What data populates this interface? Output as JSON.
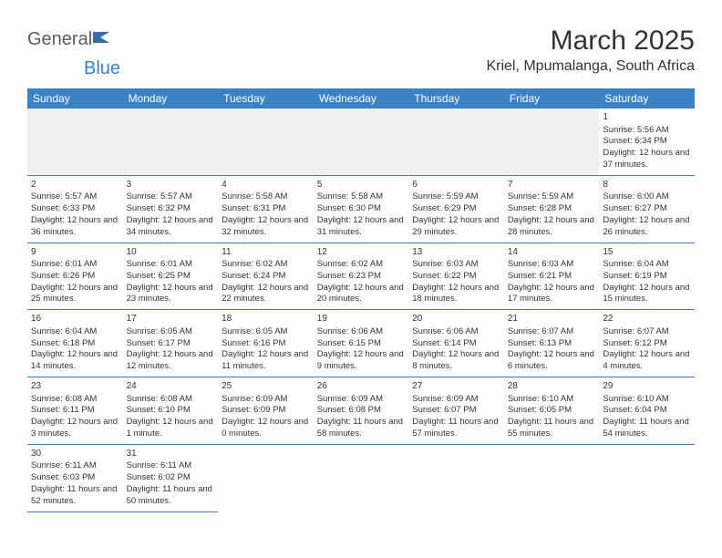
{
  "logo": {
    "text1": "General",
    "text2": "Blue",
    "shape_color": "#2f6fb0"
  },
  "title": "March 2025",
  "location": "Kriel, Mpumalanga, South Africa",
  "colors": {
    "header_bg": "#3b82c4",
    "header_text": "#ffffff",
    "cell_border": "#3b82c4",
    "blank_bg": "#efefef",
    "text": "#333333"
  },
  "day_headers": [
    "Sunday",
    "Monday",
    "Tuesday",
    "Wednesday",
    "Thursday",
    "Friday",
    "Saturday"
  ],
  "weeks": [
    [
      null,
      null,
      null,
      null,
      null,
      null,
      {
        "n": "1",
        "sr": "5:56 AM",
        "ss": "6:34 PM",
        "dl": "12 hours and 37 minutes."
      }
    ],
    [
      {
        "n": "2",
        "sr": "5:57 AM",
        "ss": "6:33 PM",
        "dl": "12 hours and 36 minutes."
      },
      {
        "n": "3",
        "sr": "5:57 AM",
        "ss": "6:32 PM",
        "dl": "12 hours and 34 minutes."
      },
      {
        "n": "4",
        "sr": "5:58 AM",
        "ss": "6:31 PM",
        "dl": "12 hours and 32 minutes."
      },
      {
        "n": "5",
        "sr": "5:58 AM",
        "ss": "6:30 PM",
        "dl": "12 hours and 31 minutes."
      },
      {
        "n": "6",
        "sr": "5:59 AM",
        "ss": "6:29 PM",
        "dl": "12 hours and 29 minutes."
      },
      {
        "n": "7",
        "sr": "5:59 AM",
        "ss": "6:28 PM",
        "dl": "12 hours and 28 minutes."
      },
      {
        "n": "8",
        "sr": "6:00 AM",
        "ss": "6:27 PM",
        "dl": "12 hours and 26 minutes."
      }
    ],
    [
      {
        "n": "9",
        "sr": "6:01 AM",
        "ss": "6:26 PM",
        "dl": "12 hours and 25 minutes."
      },
      {
        "n": "10",
        "sr": "6:01 AM",
        "ss": "6:25 PM",
        "dl": "12 hours and 23 minutes."
      },
      {
        "n": "11",
        "sr": "6:02 AM",
        "ss": "6:24 PM",
        "dl": "12 hours and 22 minutes."
      },
      {
        "n": "12",
        "sr": "6:02 AM",
        "ss": "6:23 PM",
        "dl": "12 hours and 20 minutes."
      },
      {
        "n": "13",
        "sr": "6:03 AM",
        "ss": "6:22 PM",
        "dl": "12 hours and 18 minutes."
      },
      {
        "n": "14",
        "sr": "6:03 AM",
        "ss": "6:21 PM",
        "dl": "12 hours and 17 minutes."
      },
      {
        "n": "15",
        "sr": "6:04 AM",
        "ss": "6:19 PM",
        "dl": "12 hours and 15 minutes."
      }
    ],
    [
      {
        "n": "16",
        "sr": "6:04 AM",
        "ss": "6:18 PM",
        "dl": "12 hours and 14 minutes."
      },
      {
        "n": "17",
        "sr": "6:05 AM",
        "ss": "6:17 PM",
        "dl": "12 hours and 12 minutes."
      },
      {
        "n": "18",
        "sr": "6:05 AM",
        "ss": "6:16 PM",
        "dl": "12 hours and 11 minutes."
      },
      {
        "n": "19",
        "sr": "6:06 AM",
        "ss": "6:15 PM",
        "dl": "12 hours and 9 minutes."
      },
      {
        "n": "20",
        "sr": "6:06 AM",
        "ss": "6:14 PM",
        "dl": "12 hours and 8 minutes."
      },
      {
        "n": "21",
        "sr": "6:07 AM",
        "ss": "6:13 PM",
        "dl": "12 hours and 6 minutes."
      },
      {
        "n": "22",
        "sr": "6:07 AM",
        "ss": "6:12 PM",
        "dl": "12 hours and 4 minutes."
      }
    ],
    [
      {
        "n": "23",
        "sr": "6:08 AM",
        "ss": "6:11 PM",
        "dl": "12 hours and 3 minutes."
      },
      {
        "n": "24",
        "sr": "6:08 AM",
        "ss": "6:10 PM",
        "dl": "12 hours and 1 minute."
      },
      {
        "n": "25",
        "sr": "6:09 AM",
        "ss": "6:09 PM",
        "dl": "12 hours and 0 minutes."
      },
      {
        "n": "26",
        "sr": "6:09 AM",
        "ss": "6:08 PM",
        "dl": "11 hours and 58 minutes."
      },
      {
        "n": "27",
        "sr": "6:09 AM",
        "ss": "6:07 PM",
        "dl": "11 hours and 57 minutes."
      },
      {
        "n": "28",
        "sr": "6:10 AM",
        "ss": "6:05 PM",
        "dl": "11 hours and 55 minutes."
      },
      {
        "n": "29",
        "sr": "6:10 AM",
        "ss": "6:04 PM",
        "dl": "11 hours and 54 minutes."
      }
    ],
    [
      {
        "n": "30",
        "sr": "6:11 AM",
        "ss": "6:03 PM",
        "dl": "11 hours and 52 minutes."
      },
      {
        "n": "31",
        "sr": "6:11 AM",
        "ss": "6:02 PM",
        "dl": "11 hours and 50 minutes."
      },
      null,
      null,
      null,
      null,
      null
    ]
  ],
  "labels": {
    "sunrise": "Sunrise:",
    "sunset": "Sunset:",
    "daylight": "Daylight:"
  }
}
